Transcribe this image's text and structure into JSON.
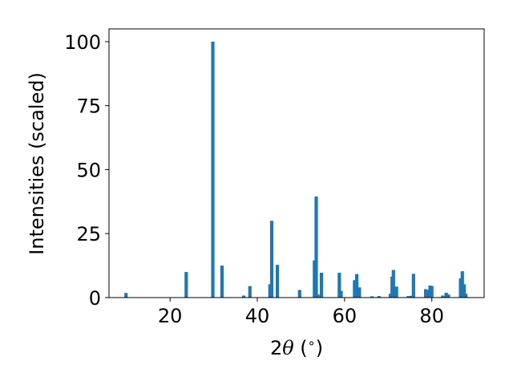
{
  "chart_data": {
    "type": "bar",
    "title": "",
    "xlabel": "2θ (°)",
    "xlabel_parts": {
      "prefix": "2",
      "symbol": "θ",
      "unit_open": " (",
      "unit_symbol": "∘",
      "unit_close": ")"
    },
    "ylabel": "Intensities (scaled)",
    "xlim": [
      6,
      92
    ],
    "ylim": [
      0,
      105
    ],
    "xticks": [
      20,
      40,
      60,
      80
    ],
    "yticks": [
      0,
      25,
      50,
      75,
      100
    ],
    "bar_color": "#1f77b4",
    "grid": false,
    "legend": "none",
    "peaks": [
      {
        "x": 9.9,
        "y": 1.8
      },
      {
        "x": 23.7,
        "y": 10.0
      },
      {
        "x": 29.8,
        "y": 100.0
      },
      {
        "x": 31.9,
        "y": 12.5
      },
      {
        "x": 36.9,
        "y": 0.8
      },
      {
        "x": 38.3,
        "y": 4.5
      },
      {
        "x": 42.9,
        "y": 5.2
      },
      {
        "x": 43.3,
        "y": 30.0
      },
      {
        "x": 44.6,
        "y": 12.8
      },
      {
        "x": 49.7,
        "y": 3.0
      },
      {
        "x": 53.1,
        "y": 14.5
      },
      {
        "x": 53.5,
        "y": 39.5
      },
      {
        "x": 53.9,
        "y": 1.2
      },
      {
        "x": 54.7,
        "y": 9.7
      },
      {
        "x": 58.8,
        "y": 9.7
      },
      {
        "x": 59.2,
        "y": 2.6
      },
      {
        "x": 62.3,
        "y": 6.8
      },
      {
        "x": 62.8,
        "y": 9.2
      },
      {
        "x": 63.4,
        "y": 4.0
      },
      {
        "x": 66.3,
        "y": 0.5
      },
      {
        "x": 67.9,
        "y": 0.6
      },
      {
        "x": 70.5,
        "y": 1.5
      },
      {
        "x": 70.9,
        "y": 8.2
      },
      {
        "x": 71.2,
        "y": 10.8
      },
      {
        "x": 71.9,
        "y": 4.3
      },
      {
        "x": 74.6,
        "y": 0.6
      },
      {
        "x": 75.3,
        "y": 0.7
      },
      {
        "x": 75.8,
        "y": 9.3
      },
      {
        "x": 78.6,
        "y": 3.3
      },
      {
        "x": 79.0,
        "y": 3.0
      },
      {
        "x": 79.6,
        "y": 4.7
      },
      {
        "x": 80.0,
        "y": 4.5
      },
      {
        "x": 82.5,
        "y": 0.8
      },
      {
        "x": 83.3,
        "y": 1.9
      },
      {
        "x": 83.8,
        "y": 1.2
      },
      {
        "x": 86.6,
        "y": 7.5
      },
      {
        "x": 87.0,
        "y": 10.3
      },
      {
        "x": 87.4,
        "y": 5.2
      },
      {
        "x": 87.8,
        "y": 1.5
      }
    ]
  }
}
